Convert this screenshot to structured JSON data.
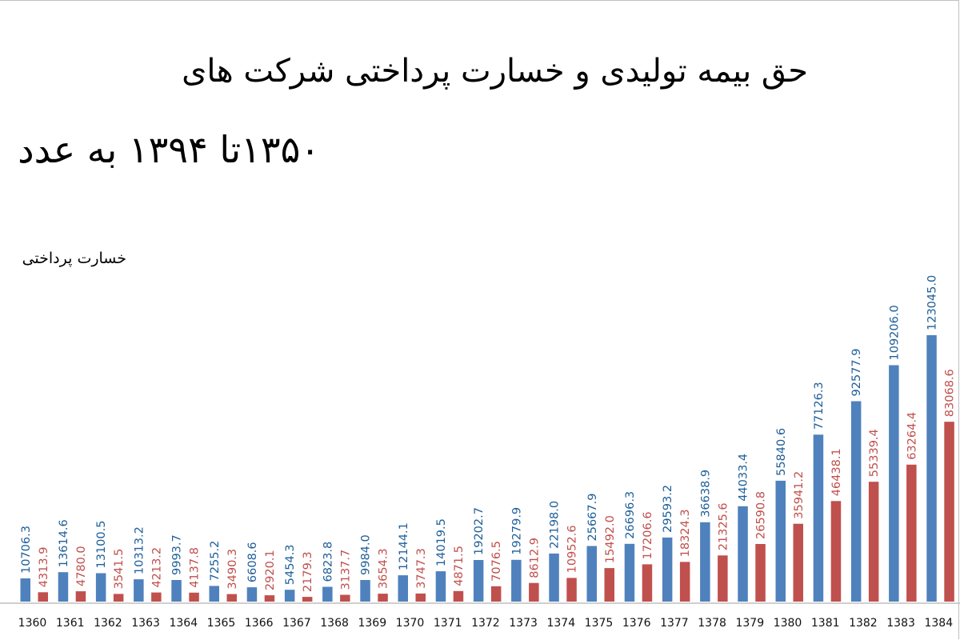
{
  "title_line_1": "حق بیمه تولیدی و خسارت پرداختی شرکت های",
  "title_line_2": "۱۳۵۰تا ۱۳۹۴ به عدد",
  "legend_label": "خسارت پرداختی",
  "colors": {
    "premium": "#4f81bd",
    "premium_label": "#1f5f99",
    "loss": "#c0504d",
    "loss_label": "#c0504d",
    "axis": "#bfbfbf"
  },
  "chart_data": {
    "type": "bar",
    "categories": [
      "1360",
      "1361",
      "1362",
      "1363",
      "1364",
      "1365",
      "1366",
      "1367",
      "1368",
      "1369",
      "1370",
      "1371",
      "1372",
      "1373",
      "1374",
      "1375",
      "1376",
      "1377",
      "1378",
      "1379",
      "1380",
      "1381",
      "1382",
      "1383",
      "1384"
    ],
    "series": [
      {
        "values": [
          10706.3,
          13614.6,
          13100.5,
          10313.2,
          9993.7,
          7255.2,
          6608.6,
          5454.3,
          6823.8,
          9984.0,
          12144.1,
          14019.5,
          19202.7,
          19279.9,
          22198.0,
          25667.9,
          26696.3,
          29593.2,
          36638.9,
          44033.4,
          55840.6,
          77126.3,
          92577.9,
          109206.0,
          123045.0
        ]
      },
      {
        "name": "خسارت پرداختی",
        "values": [
          4313.9,
          4780.0,
          3541.5,
          4213.2,
          4137.8,
          3490.3,
          2920.1,
          2179.3,
          3137.7,
          3654.3,
          3747.3,
          4871.5,
          7076.5,
          8612.9,
          10952.6,
          15492.0,
          17206.6,
          18324.3,
          21325.6,
          26590.8,
          35941.2,
          46438.1,
          55339.4,
          63264.4,
          83068.6
        ]
      }
    ],
    "ylim": [
      0,
      140000
    ]
  }
}
